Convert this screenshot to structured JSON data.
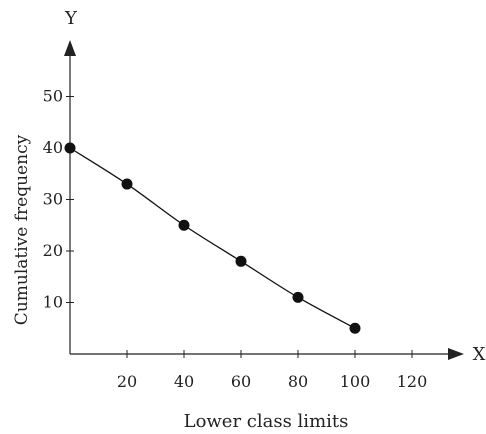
{
  "chart_data": {
    "type": "line",
    "xlabel": "Lower class limits",
    "ylabel": "Cumulative frequency",
    "x_axis_letter": "X",
    "y_axis_letter": "Y",
    "x_ticks": [
      "20",
      "40",
      "60",
      "80",
      "100",
      "120"
    ],
    "x_tick_values": [
      20,
      40,
      60,
      80,
      100,
      120
    ],
    "y_ticks": [
      "10",
      "20",
      "30",
      "40",
      "50"
    ],
    "y_tick_values": [
      10,
      20,
      30,
      40,
      50
    ],
    "xlim": [
      0,
      130
    ],
    "ylim": [
      0,
      60
    ],
    "grid": false,
    "series": [
      {
        "x": [
          0,
          20,
          40,
          60,
          80,
          100
        ],
        "y": [
          40,
          33,
          25,
          18,
          11,
          5
        ]
      }
    ],
    "colors": {
      "line": "#111111",
      "marker": "#111111",
      "axis": "#222222"
    }
  }
}
